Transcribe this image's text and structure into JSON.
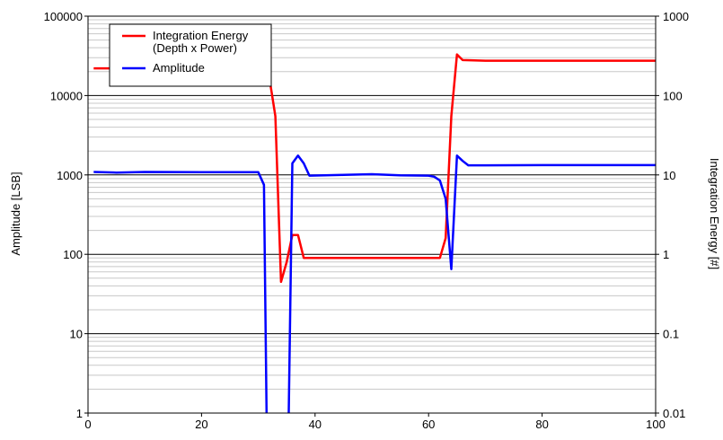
{
  "chart_data": {
    "type": "line",
    "xlim": [
      0,
      100
    ],
    "x_ticks": [
      0,
      20,
      40,
      60,
      80,
      100
    ],
    "x_tick_labels": [
      "0",
      "20",
      "40",
      "60",
      "80",
      "100"
    ],
    "y_left": {
      "label": "Amplitude [LSB]",
      "scale": "log",
      "lim": [
        1,
        100000
      ],
      "ticks": [
        1,
        10,
        100,
        1000,
        10000,
        100000
      ],
      "tick_labels": [
        "1",
        "10",
        "100",
        "1000",
        "10000",
        "100000"
      ]
    },
    "y_right": {
      "label": "Integration Energy [#]",
      "scale": "log",
      "lim": [
        0.01,
        1000
      ],
      "ticks": [
        0.01,
        0.1,
        1,
        10,
        100,
        1000
      ],
      "tick_labels": [
        "0.01",
        "0.1",
        "1",
        "10",
        "100",
        "1000"
      ]
    },
    "grid": true,
    "legend_position": "top-left",
    "series": [
      {
        "name": "Integration Energy\n(Depth x Power)",
        "color": "#ff0000",
        "axis": "right",
        "x": [
          1,
          10,
          20,
          29,
          31,
          32,
          33,
          34,
          35,
          36,
          37,
          38,
          40,
          50,
          60,
          62,
          63,
          64,
          65,
          66,
          70,
          80,
          90,
          100
        ],
        "y": [
          220,
          220,
          220,
          220,
          210,
          160,
          55,
          0.45,
          0.8,
          1.75,
          1.75,
          0.9,
          0.9,
          0.9,
          0.9,
          0.9,
          1.6,
          55,
          330,
          280,
          275,
          275,
          275,
          275
        ]
      },
      {
        "name": "Amplitude",
        "color": "#0000ff",
        "axis": "left",
        "x": [
          1,
          5,
          10,
          20,
          29,
          30,
          31,
          31.5,
          35.3,
          36,
          37,
          38,
          39,
          45,
          50,
          55,
          60,
          61,
          62,
          63,
          64,
          65,
          66,
          67,
          70,
          80,
          90,
          100
        ],
        "y": [
          1090,
          1070,
          1090,
          1080,
          1080,
          1080,
          750,
          0.5,
          0.5,
          1400,
          1750,
          1400,
          980,
          1000,
          1020,
          990,
          980,
          950,
          850,
          500,
          65,
          1750,
          1500,
          1320,
          1320,
          1330,
          1330,
          1330
        ]
      }
    ]
  }
}
